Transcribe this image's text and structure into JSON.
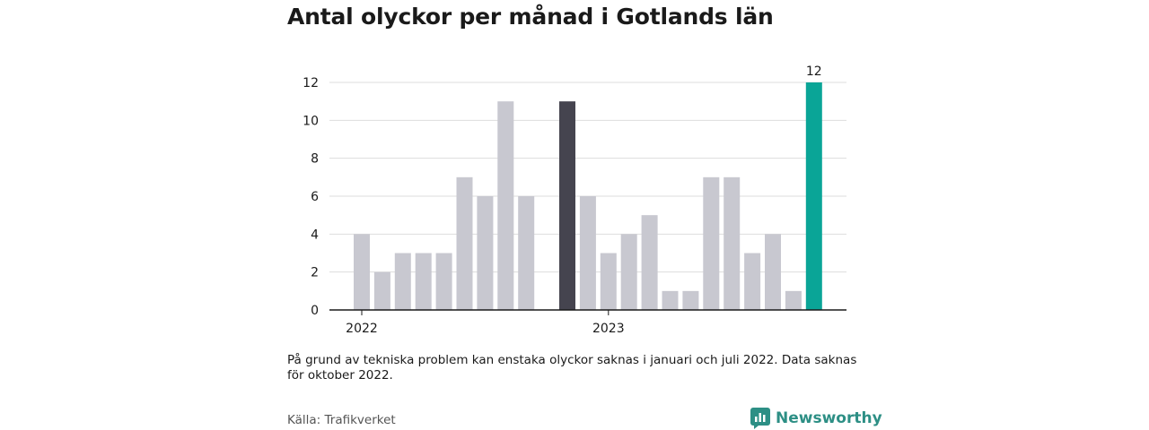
{
  "title": "Antal olyckor per månad i Gotlands län",
  "note": "På grund av tekniska problem kan enstaka olyckor saknas i januari och juli 2022. Data saknas för oktober 2022.",
  "source": "Källa: Trafikverket",
  "brand": {
    "name": "Newsworthy",
    "icon": "newsworthy-logo-icon",
    "color": "#2d8f85"
  },
  "colors": {
    "default": "#c8c8d0",
    "highlight": "#45444f",
    "latest": "#0aa597"
  },
  "chart_data": {
    "type": "bar",
    "x_tick_labels": [
      "2022",
      "2023"
    ],
    "ylim": [
      0,
      12
    ],
    "y_ticks": [
      0,
      2,
      4,
      6,
      8,
      10,
      12
    ],
    "grid": true,
    "series": [
      {
        "values": [
          4,
          2,
          3,
          3,
          3,
          7,
          6,
          11,
          6,
          null,
          11,
          6,
          3,
          4,
          5,
          1,
          1,
          7,
          7,
          3,
          4,
          1,
          12
        ],
        "highlight_index": 10,
        "latest_index": 22,
        "data_labels": {
          "22": "12"
        }
      }
    ]
  }
}
